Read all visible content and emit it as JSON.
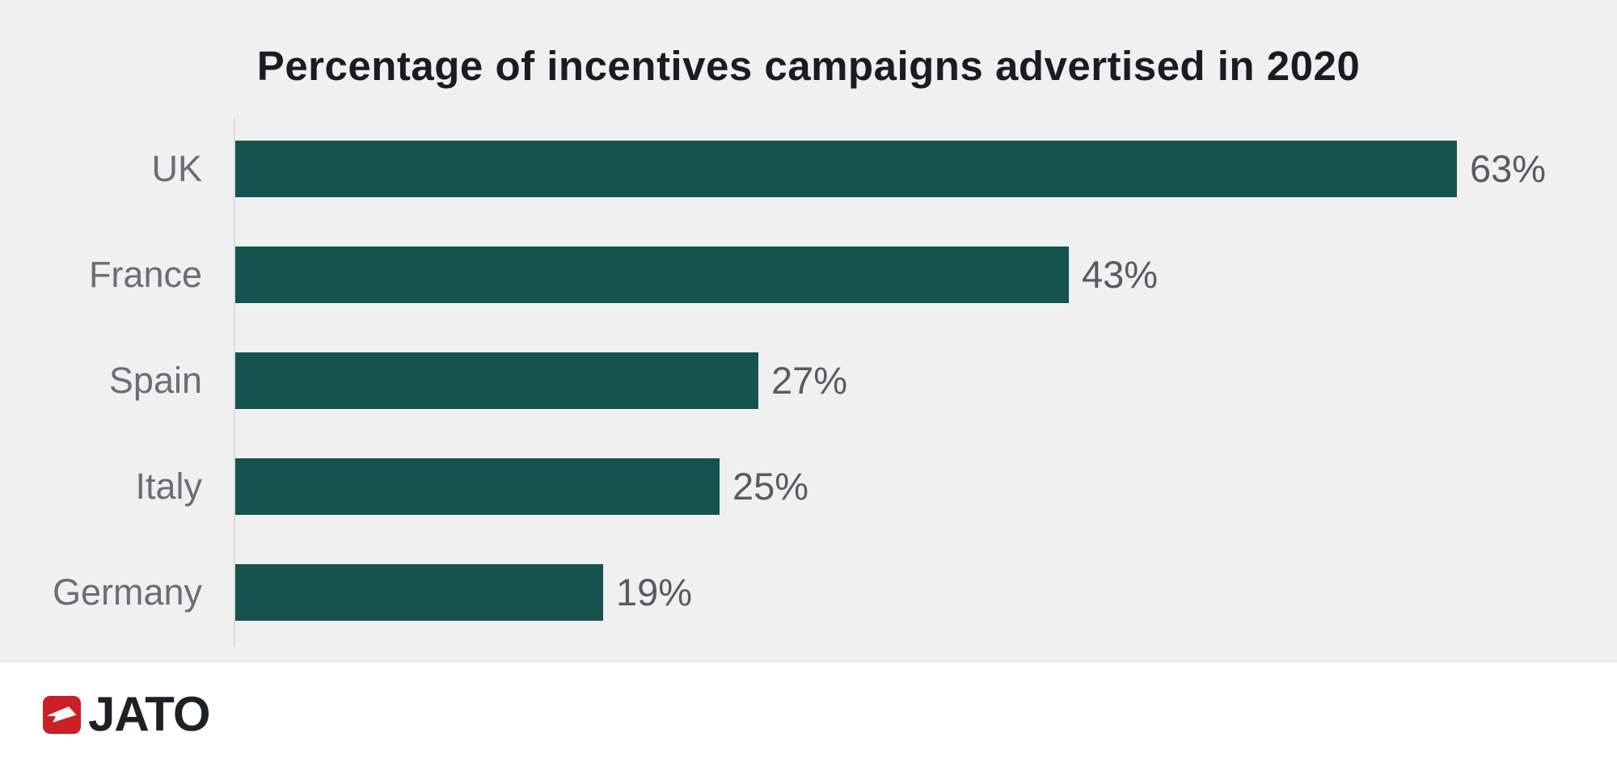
{
  "title": "Percentage of incentives campaigns advertised in 2020",
  "chart_data": {
    "type": "bar",
    "orientation": "horizontal",
    "title": "Percentage of incentives campaigns advertised in 2020",
    "categories": [
      "UK",
      "France",
      "Spain",
      "Italy",
      "Germany"
    ],
    "values": [
      63,
      43,
      27,
      25,
      19
    ],
    "value_suffix": "%",
    "xlabel": "",
    "ylabel": "",
    "xlim": [
      0,
      63
    ],
    "grid": false,
    "legend": false,
    "value_labels_position": "right-of-bar",
    "bar_color": "#15534f",
    "panel_background": "#f0f0f1",
    "category_label_color": "#6b6f73",
    "value_label_color": "#595c5f"
  },
  "branding": {
    "logo_text": "JATO",
    "logo_icon": "jato-arrow-icon",
    "logo_color": "#cb2026",
    "logo_text_color": "#1d2024"
  }
}
